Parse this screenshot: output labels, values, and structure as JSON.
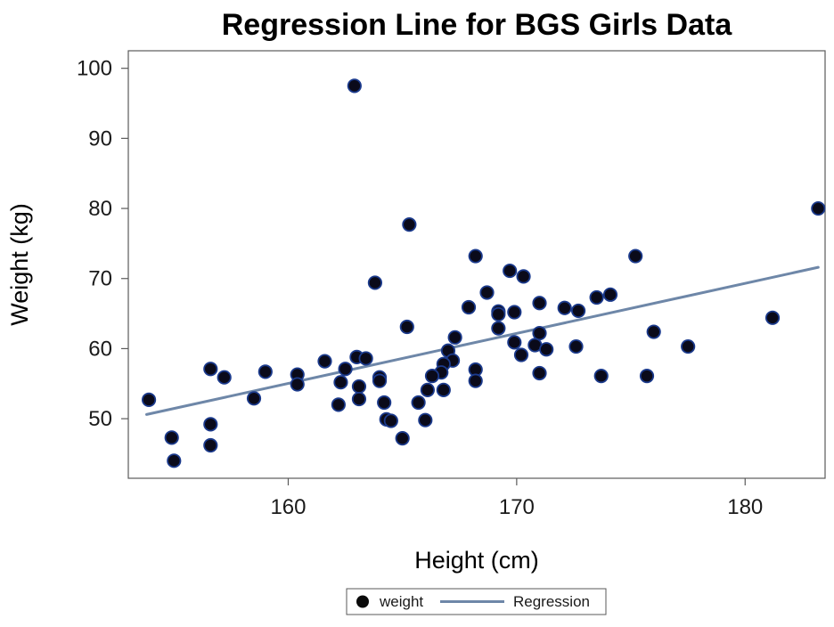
{
  "chart_data": {
    "type": "scatter",
    "title": "Regression Line for BGS Girls Data",
    "xlabel": "Height (cm)",
    "ylabel": "Weight (kg)",
    "xlim": [
      153,
      183.5
    ],
    "ylim": [
      41.5,
      102.5
    ],
    "xticks": [
      160,
      170,
      180
    ],
    "yticks": [
      50,
      60,
      70,
      80,
      90,
      100
    ],
    "grid": false,
    "legend_position": "bottom",
    "colors": {
      "marker_fill": "#0a0a1a",
      "marker_edge": "#1b3a8c",
      "regression": "#6e87a8",
      "frame": "#5a5a5a"
    },
    "series": [
      {
        "name": "weight",
        "kind": "scatter",
        "points": [
          [
            162.9,
            97.5
          ],
          [
            183.2,
            80.0
          ],
          [
            165.3,
            77.7
          ],
          [
            168.2,
            73.2
          ],
          [
            175.2,
            73.2
          ],
          [
            169.7,
            71.1
          ],
          [
            170.3,
            70.3
          ],
          [
            163.8,
            69.4
          ],
          [
            168.7,
            68.0
          ],
          [
            174.1,
            67.7
          ],
          [
            173.5,
            67.3
          ],
          [
            171.0,
            66.5
          ],
          [
            167.9,
            65.9
          ],
          [
            172.1,
            65.8
          ],
          [
            172.7,
            65.4
          ],
          [
            169.2,
            65.3
          ],
          [
            169.9,
            65.2
          ],
          [
            169.2,
            64.9
          ],
          [
            181.2,
            64.4
          ],
          [
            165.2,
            63.1
          ],
          [
            169.2,
            62.9
          ],
          [
            176.0,
            62.4
          ],
          [
            171.0,
            62.2
          ],
          [
            167.3,
            61.6
          ],
          [
            169.9,
            60.9
          ],
          [
            170.8,
            60.5
          ],
          [
            177.5,
            60.3
          ],
          [
            172.6,
            60.3
          ],
          [
            171.3,
            59.9
          ],
          [
            167.0,
            59.7
          ],
          [
            170.2,
            59.1
          ],
          [
            163.0,
            58.8
          ],
          [
            163.4,
            58.6
          ],
          [
            167.2,
            58.3
          ],
          [
            161.6,
            58.2
          ],
          [
            166.8,
            57.8
          ],
          [
            156.6,
            57.1
          ],
          [
            162.5,
            57.1
          ],
          [
            168.2,
            57.0
          ],
          [
            159.0,
            56.7
          ],
          [
            166.7,
            56.6
          ],
          [
            171.0,
            56.5
          ],
          [
            160.4,
            56.3
          ],
          [
            166.3,
            56.1
          ],
          [
            173.7,
            56.1
          ],
          [
            175.7,
            56.1
          ],
          [
            157.2,
            55.9
          ],
          [
            164.0,
            55.9
          ],
          [
            164.0,
            55.4
          ],
          [
            168.2,
            55.4
          ],
          [
            162.3,
            55.2
          ],
          [
            160.4,
            54.9
          ],
          [
            163.1,
            54.6
          ],
          [
            166.1,
            54.1
          ],
          [
            166.8,
            54.1
          ],
          [
            158.5,
            52.9
          ],
          [
            163.1,
            52.8
          ],
          [
            153.9,
            52.7
          ],
          [
            164.2,
            52.3
          ],
          [
            165.7,
            52.3
          ],
          [
            162.2,
            52.0
          ],
          [
            164.3,
            49.9
          ],
          [
            166.0,
            49.8
          ],
          [
            164.5,
            49.7
          ],
          [
            156.6,
            49.2
          ],
          [
            154.9,
            47.3
          ],
          [
            165.0,
            47.2
          ],
          [
            156.6,
            46.2
          ],
          [
            155.0,
            44.0
          ]
        ]
      },
      {
        "name": "Regression",
        "kind": "line",
        "points": [
          [
            153.8,
            50.6
          ],
          [
            183.2,
            71.6
          ]
        ]
      }
    ]
  }
}
